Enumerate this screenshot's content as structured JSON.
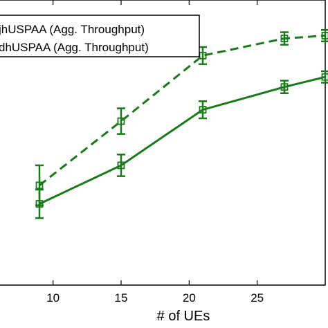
{
  "chart_data": {
    "type": "line",
    "xlabel": "# of UEs",
    "ylabel": "",
    "title": "",
    "x_ticks": [
      10,
      15,
      20,
      25
    ],
    "xlim": [
      6,
      30
    ],
    "ylim": [
      0,
      10
    ],
    "grid": false,
    "legend_position": "top-left",
    "series": [
      {
        "name": "jhUSPAA (Agg. Throughput)",
        "style": "dashed",
        "color": "#1a7a1a",
        "x": [
          9,
          15,
          21,
          27,
          30
        ],
        "y": [
          3.5,
          5.75,
          8.05,
          8.65,
          8.75
        ],
        "err": [
          0.7,
          0.45,
          0.3,
          0.22,
          0.2
        ]
      },
      {
        "name": "dhUSPAA (Agg. Throughput)",
        "style": "solid",
        "color": "#1a7a1a",
        "x": [
          9,
          15,
          21,
          27,
          30
        ],
        "y": [
          2.85,
          4.2,
          6.15,
          6.95,
          7.3
        ],
        "err": [
          0.5,
          0.38,
          0.3,
          0.22,
          0.2
        ]
      }
    ]
  }
}
